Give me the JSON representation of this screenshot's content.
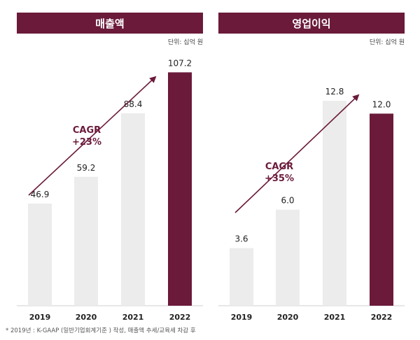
{
  "chart_data": [
    {
      "type": "bar",
      "title": "매출액",
      "unit_label": "단위: 십억 원",
      "categories": [
        "2019",
        "2020",
        "2021",
        "2022"
      ],
      "values": [
        46.9,
        59.2,
        88.4,
        107.2
      ],
      "value_labels": [
        "46.9",
        "59.2",
        "88.4",
        "107.2"
      ],
      "highlight_index": 3,
      "ylim": [
        0,
        125
      ],
      "cagr_label": "CAGR",
      "cagr_value": "+23%",
      "colors": {
        "bar": "#ececec",
        "highlight": "#6b1a3a",
        "accent": "#6b1a3a"
      }
    },
    {
      "type": "bar",
      "title": "영업이익",
      "unit_label": "단위: 십억 원",
      "categories": [
        "2019",
        "2020",
        "2021",
        "2022"
      ],
      "values": [
        3.6,
        6.0,
        12.8,
        12.0
      ],
      "value_labels": [
        "3.6",
        "6.0",
        "12.8",
        "12.0"
      ],
      "highlight_index": 3,
      "ylim": [
        0,
        17
      ],
      "cagr_label": "CAGR",
      "cagr_value": "+35%",
      "colors": {
        "bar": "#ececec",
        "highlight": "#6b1a3a",
        "accent": "#6b1a3a"
      }
    }
  ],
  "footnote": "* 2019년 : K-GAAP (일반기업회계기준 ) 작성, 매출액 추세/교육세 차감 후"
}
